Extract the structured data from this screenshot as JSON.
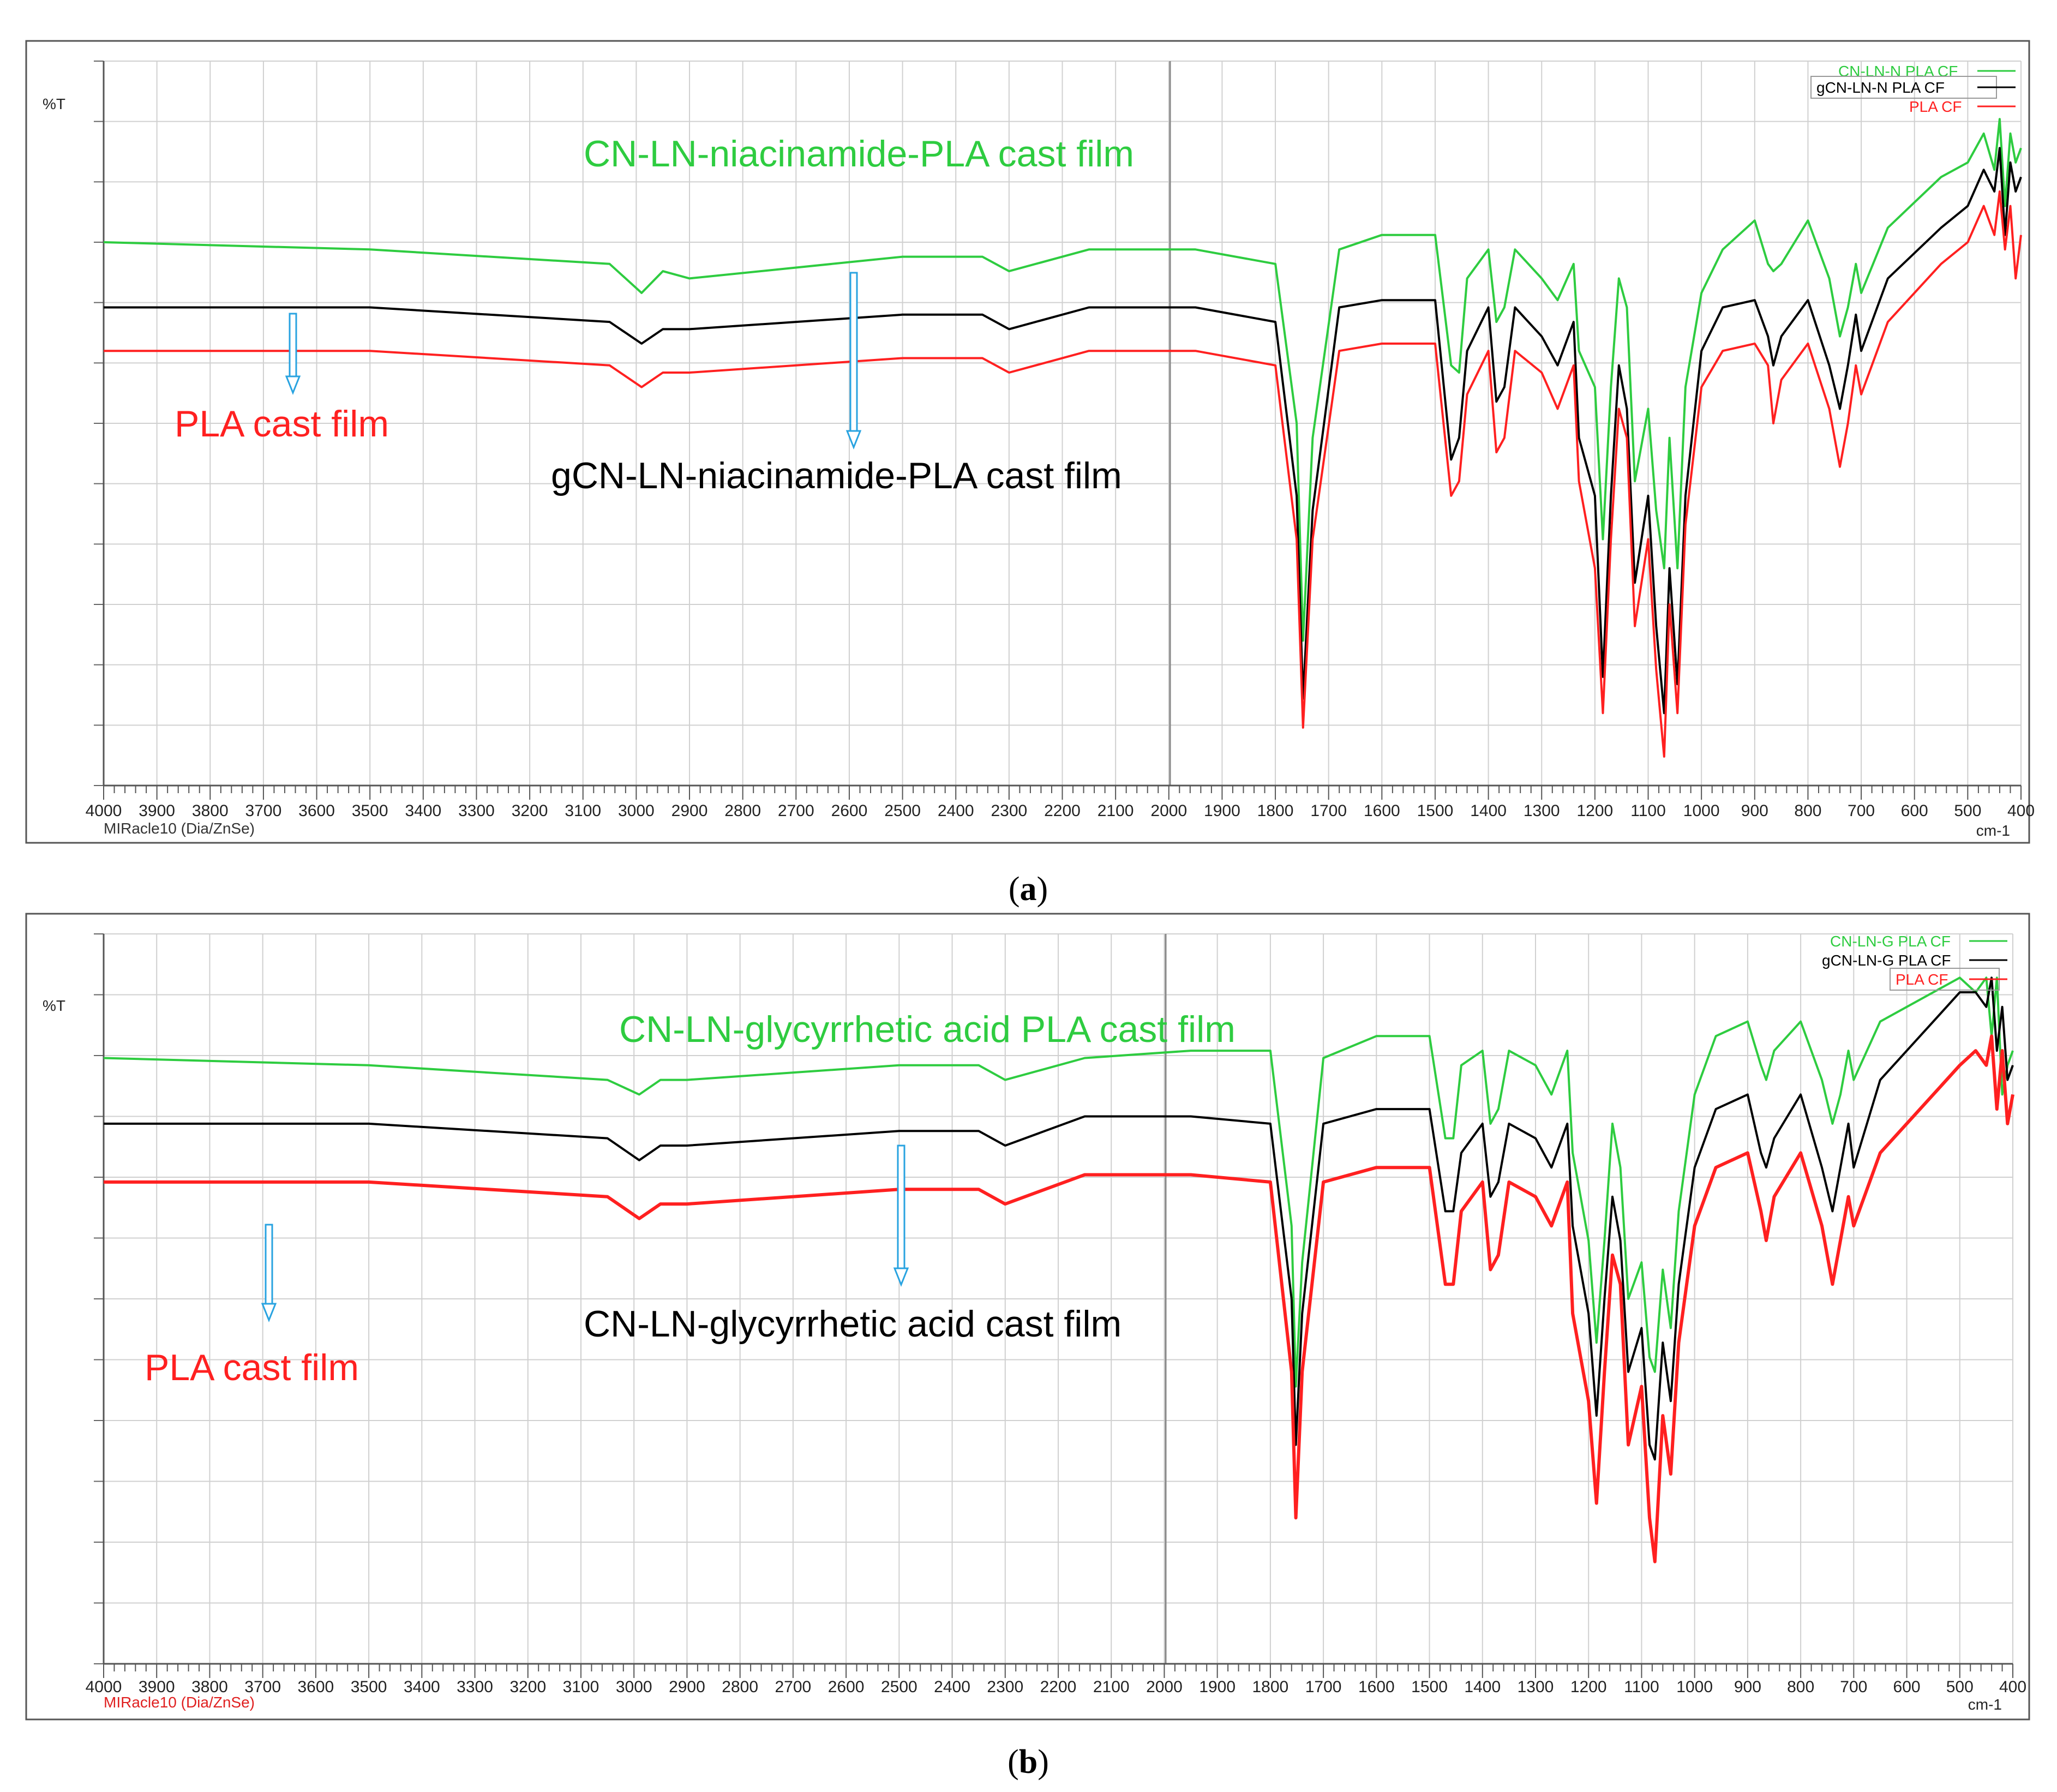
{
  "figure": {
    "panels": [
      {
        "caption_letter": "a",
        "y_unit": "%T",
        "x_unit": "cm-1",
        "instrument": "MIRacle10 (Dia/ZnSe)",
        "legend": [
          {
            "label": "CN-LN-N PLA CF",
            "color": "#2ecc40"
          },
          {
            "label": "gCN-LN-N PLA CF",
            "color": "#000000"
          },
          {
            "label": "PLA CF",
            "color": "#ff2020"
          }
        ],
        "annotations": [
          {
            "text": "CN-LN-niacinamide-PLA cast film",
            "color": "#2ecc40"
          },
          {
            "text": "PLA cast film",
            "color": "#ff2020"
          },
          {
            "text": "gCN-LN-niacinamide-PLA cast film",
            "color": "#000000"
          }
        ]
      },
      {
        "caption_letter": "b",
        "y_unit": "%T",
        "x_unit": "cm-1",
        "instrument": "MIRacle10 (Dia/ZnSe)",
        "legend": [
          {
            "label": "CN-LN-G PLA CF",
            "color": "#2ecc40"
          },
          {
            "label": "gCN-LN-G PLA CF",
            "color": "#000000"
          },
          {
            "label": "PLA CF",
            "color": "#ff2020"
          }
        ],
        "annotations": [
          {
            "text": "CN-LN-glycyrrhetic acid PLA cast film",
            "color": "#2ecc40"
          },
          {
            "text": "CN-LN-glycyrrhetic acid cast film",
            "color": "#000000"
          },
          {
            "text": "PLA cast film",
            "color": "#ff2020"
          }
        ]
      }
    ]
  },
  "chart_data": [
    {
      "type": "line",
      "x_ticks": [
        4000,
        3900,
        3800,
        3700,
        3600,
        3500,
        3400,
        3300,
        3200,
        3100,
        3000,
        2900,
        2800,
        2700,
        2600,
        2500,
        2400,
        2300,
        2200,
        2100,
        2000,
        1900,
        1800,
        1700,
        1600,
        1500,
        1400,
        1300,
        1200,
        1100,
        1000,
        900,
        800,
        700,
        600,
        500,
        400
      ],
      "xlim": [
        4000,
        400
      ],
      "x_reversed": true,
      "ylim": [
        0,
        100
      ],
      "grid": true,
      "legend_position": "top-right",
      "series": [
        {
          "name": "CN-LN-N PLA CF",
          "color": "#2ecc40",
          "baseline": 75,
          "x": [
            4000,
            3500,
            3050,
            2990,
            2950,
            2900,
            2500,
            2350,
            2300,
            2150,
            1950,
            1800,
            1760,
            1748,
            1730,
            1680,
            1600,
            1500,
            1470,
            1455,
            1440,
            1400,
            1385,
            1370,
            1350,
            1300,
            1270,
            1240,
            1230,
            1200,
            1185,
            1170,
            1155,
            1140,
            1125,
            1100,
            1085,
            1070,
            1060,
            1045,
            1030,
            1000,
            960,
            900,
            875,
            865,
            850,
            800,
            760,
            740,
            725,
            710,
            700,
            650,
            550,
            500,
            470,
            450,
            440,
            430,
            420,
            410,
            400
          ],
          "y": [
            75,
            74,
            72,
            68,
            71,
            70,
            73,
            73,
            71,
            74,
            74,
            72,
            50,
            20,
            48,
            74,
            76,
            76,
            58,
            57,
            70,
            74,
            64,
            66,
            74,
            70,
            67,
            72,
            60,
            55,
            34,
            55,
            70,
            66,
            42,
            52,
            38,
            30,
            48,
            30,
            55,
            68,
            74,
            78,
            72,
            71,
            72,
            78,
            70,
            62,
            66,
            72,
            68,
            77,
            84,
            86,
            90,
            85,
            92,
            80,
            90,
            86,
            88
          ]
        },
        {
          "name": "gCN-LN-N PLA CF",
          "color": "#000000",
          "baseline": 66,
          "x": [
            4000,
            3500,
            3050,
            2990,
            2950,
            2900,
            2500,
            2350,
            2300,
            2150,
            1950,
            1800,
            1760,
            1748,
            1730,
            1680,
            1600,
            1500,
            1470,
            1455,
            1440,
            1400,
            1385,
            1370,
            1350,
            1300,
            1270,
            1240,
            1230,
            1200,
            1185,
            1170,
            1155,
            1140,
            1125,
            1100,
            1085,
            1070,
            1060,
            1045,
            1030,
            1000,
            960,
            900,
            875,
            865,
            850,
            800,
            760,
            740,
            725,
            710,
            700,
            650,
            550,
            500,
            470,
            450,
            440,
            430,
            420,
            410,
            400
          ],
          "y": [
            66,
            66,
            64,
            61,
            63,
            63,
            65,
            65,
            63,
            66,
            66,
            64,
            40,
            12,
            38,
            66,
            67,
            67,
            45,
            48,
            60,
            66,
            53,
            55,
            66,
            62,
            58,
            64,
            48,
            40,
            15,
            40,
            58,
            52,
            28,
            40,
            22,
            10,
            30,
            14,
            40,
            60,
            66,
            67,
            62,
            58,
            62,
            67,
            58,
            52,
            58,
            65,
            60,
            70,
            77,
            80,
            85,
            82,
            88,
            76,
            86,
            82,
            84
          ]
        },
        {
          "name": "PLA CF",
          "color": "#ff2020",
          "baseline": 60,
          "x": [
            4000,
            3500,
            3050,
            2990,
            2950,
            2900,
            2500,
            2350,
            2300,
            2150,
            1950,
            1800,
            1760,
            1748,
            1730,
            1680,
            1600,
            1500,
            1470,
            1455,
            1440,
            1400,
            1385,
            1370,
            1350,
            1300,
            1270,
            1240,
            1230,
            1200,
            1185,
            1170,
            1155,
            1140,
            1125,
            1100,
            1085,
            1070,
            1060,
            1045,
            1030,
            1000,
            960,
            900,
            875,
            865,
            850,
            800,
            760,
            740,
            725,
            710,
            700,
            650,
            550,
            500,
            470,
            450,
            440,
            430,
            420,
            410,
            400
          ],
          "y": [
            60,
            60,
            58,
            55,
            57,
            57,
            59,
            59,
            57,
            60,
            60,
            58,
            34,
            8,
            34,
            60,
            61,
            61,
            40,
            42,
            54,
            60,
            46,
            48,
            60,
            57,
            52,
            58,
            42,
            30,
            10,
            34,
            52,
            48,
            22,
            34,
            16,
            4,
            25,
            10,
            36,
            55,
            60,
            61,
            58,
            50,
            56,
            61,
            52,
            44,
            50,
            58,
            54,
            64,
            72,
            75,
            80,
            76,
            82,
            74,
            80,
            70,
            76
          ]
        }
      ]
    },
    {
      "type": "line",
      "x_ticks": [
        4000,
        3900,
        3800,
        3700,
        3600,
        3500,
        3400,
        3300,
        3200,
        3100,
        3000,
        2900,
        2800,
        2700,
        2600,
        2500,
        2400,
        2300,
        2200,
        2100,
        2000,
        1900,
        1800,
        1700,
        1600,
        1500,
        1400,
        1300,
        1200,
        1100,
        1000,
        900,
        800,
        700,
        600,
        500,
        400
      ],
      "xlim": [
        4000,
        400
      ],
      "x_reversed": true,
      "ylim": [
        0,
        100
      ],
      "grid": true,
      "legend_position": "top-right",
      "series": [
        {
          "name": "CN-LN-G PLA CF",
          "color": "#2ecc40",
          "baseline": 83,
          "x": [
            4000,
            3500,
            3050,
            2990,
            2950,
            2900,
            2500,
            2350,
            2300,
            2150,
            1950,
            1800,
            1760,
            1752,
            1740,
            1700,
            1600,
            1500,
            1470,
            1455,
            1440,
            1400,
            1385,
            1370,
            1350,
            1300,
            1270,
            1240,
            1230,
            1200,
            1185,
            1170,
            1155,
            1140,
            1125,
            1100,
            1085,
            1075,
            1060,
            1045,
            1030,
            1000,
            960,
            900,
            875,
            865,
            850,
            800,
            760,
            740,
            725,
            710,
            700,
            650,
            550,
            500,
            470,
            450,
            440,
            430,
            420,
            410,
            400
          ],
          "y": [
            83,
            82,
            80,
            78,
            80,
            80,
            82,
            82,
            80,
            83,
            84,
            84,
            60,
            38,
            55,
            83,
            86,
            86,
            72,
            72,
            82,
            84,
            74,
            76,
            84,
            82,
            78,
            84,
            70,
            58,
            44,
            58,
            74,
            68,
            50,
            55,
            42,
            40,
            54,
            46,
            62,
            78,
            86,
            88,
            82,
            80,
            84,
            88,
            80,
            74,
            78,
            84,
            80,
            88,
            92,
            94,
            92,
            94,
            86,
            94,
            78,
            82,
            84
          ]
        },
        {
          "name": "gCN-LN-G PLA CF",
          "color": "#000000",
          "baseline": 74,
          "x": [
            4000,
            3500,
            3050,
            2990,
            2950,
            2900,
            2500,
            2350,
            2300,
            2150,
            1950,
            1800,
            1760,
            1752,
            1740,
            1700,
            1600,
            1500,
            1470,
            1455,
            1440,
            1400,
            1385,
            1370,
            1350,
            1300,
            1270,
            1240,
            1230,
            1200,
            1185,
            1170,
            1155,
            1140,
            1125,
            1100,
            1085,
            1075,
            1060,
            1045,
            1030,
            1000,
            960,
            900,
            875,
            865,
            850,
            800,
            760,
            740,
            725,
            710,
            700,
            650,
            550,
            500,
            470,
            450,
            440,
            430,
            420,
            410,
            400
          ],
          "y": [
            74,
            74,
            72,
            69,
            71,
            71,
            73,
            73,
            71,
            75,
            75,
            74,
            50,
            30,
            48,
            74,
            76,
            76,
            62,
            62,
            70,
            74,
            64,
            66,
            74,
            72,
            68,
            74,
            60,
            48,
            34,
            50,
            64,
            58,
            40,
            46,
            30,
            28,
            44,
            36,
            52,
            68,
            76,
            78,
            70,
            68,
            72,
            78,
            68,
            62,
            68,
            74,
            68,
            80,
            88,
            92,
            92,
            90,
            94,
            84,
            90,
            80,
            82
          ]
        },
        {
          "name": "PLA CF",
          "color": "#ff2020",
          "baseline": 66,
          "x": [
            4000,
            3500,
            3050,
            2990,
            2950,
            2900,
            2500,
            2350,
            2300,
            2150,
            1950,
            1800,
            1760,
            1752,
            1740,
            1700,
            1600,
            1500,
            1470,
            1455,
            1440,
            1400,
            1385,
            1370,
            1350,
            1300,
            1270,
            1240,
            1230,
            1200,
            1185,
            1170,
            1155,
            1140,
            1125,
            1100,
            1085,
            1075,
            1060,
            1045,
            1030,
            1000,
            960,
            900,
            875,
            865,
            850,
            800,
            760,
            740,
            725,
            710,
            700,
            650,
            550,
            500,
            470,
            450,
            440,
            430,
            420,
            410,
            400
          ],
          "y": [
            66,
            66,
            64,
            61,
            63,
            63,
            65,
            65,
            63,
            67,
            67,
            66,
            40,
            20,
            40,
            66,
            68,
            68,
            52,
            52,
            62,
            66,
            54,
            56,
            66,
            64,
            60,
            66,
            48,
            36,
            22,
            40,
            56,
            52,
            30,
            38,
            20,
            14,
            34,
            26,
            44,
            60,
            68,
            70,
            62,
            58,
            64,
            70,
            60,
            52,
            58,
            64,
            60,
            70,
            78,
            82,
            84,
            82,
            86,
            76,
            84,
            74,
            78
          ]
        }
      ]
    }
  ]
}
